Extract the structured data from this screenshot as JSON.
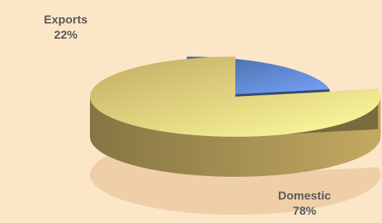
{
  "chart_data": {
    "type": "pie",
    "style": "3d-exploded",
    "slices": [
      {
        "label": "Exports",
        "value": 22,
        "value_label": "22%",
        "color": "#5b7fc4"
      },
      {
        "label": "Domestic",
        "value": 78,
        "value_label": "78%",
        "color": "#f4d57a"
      }
    ],
    "legend": "none",
    "title": ""
  }
}
